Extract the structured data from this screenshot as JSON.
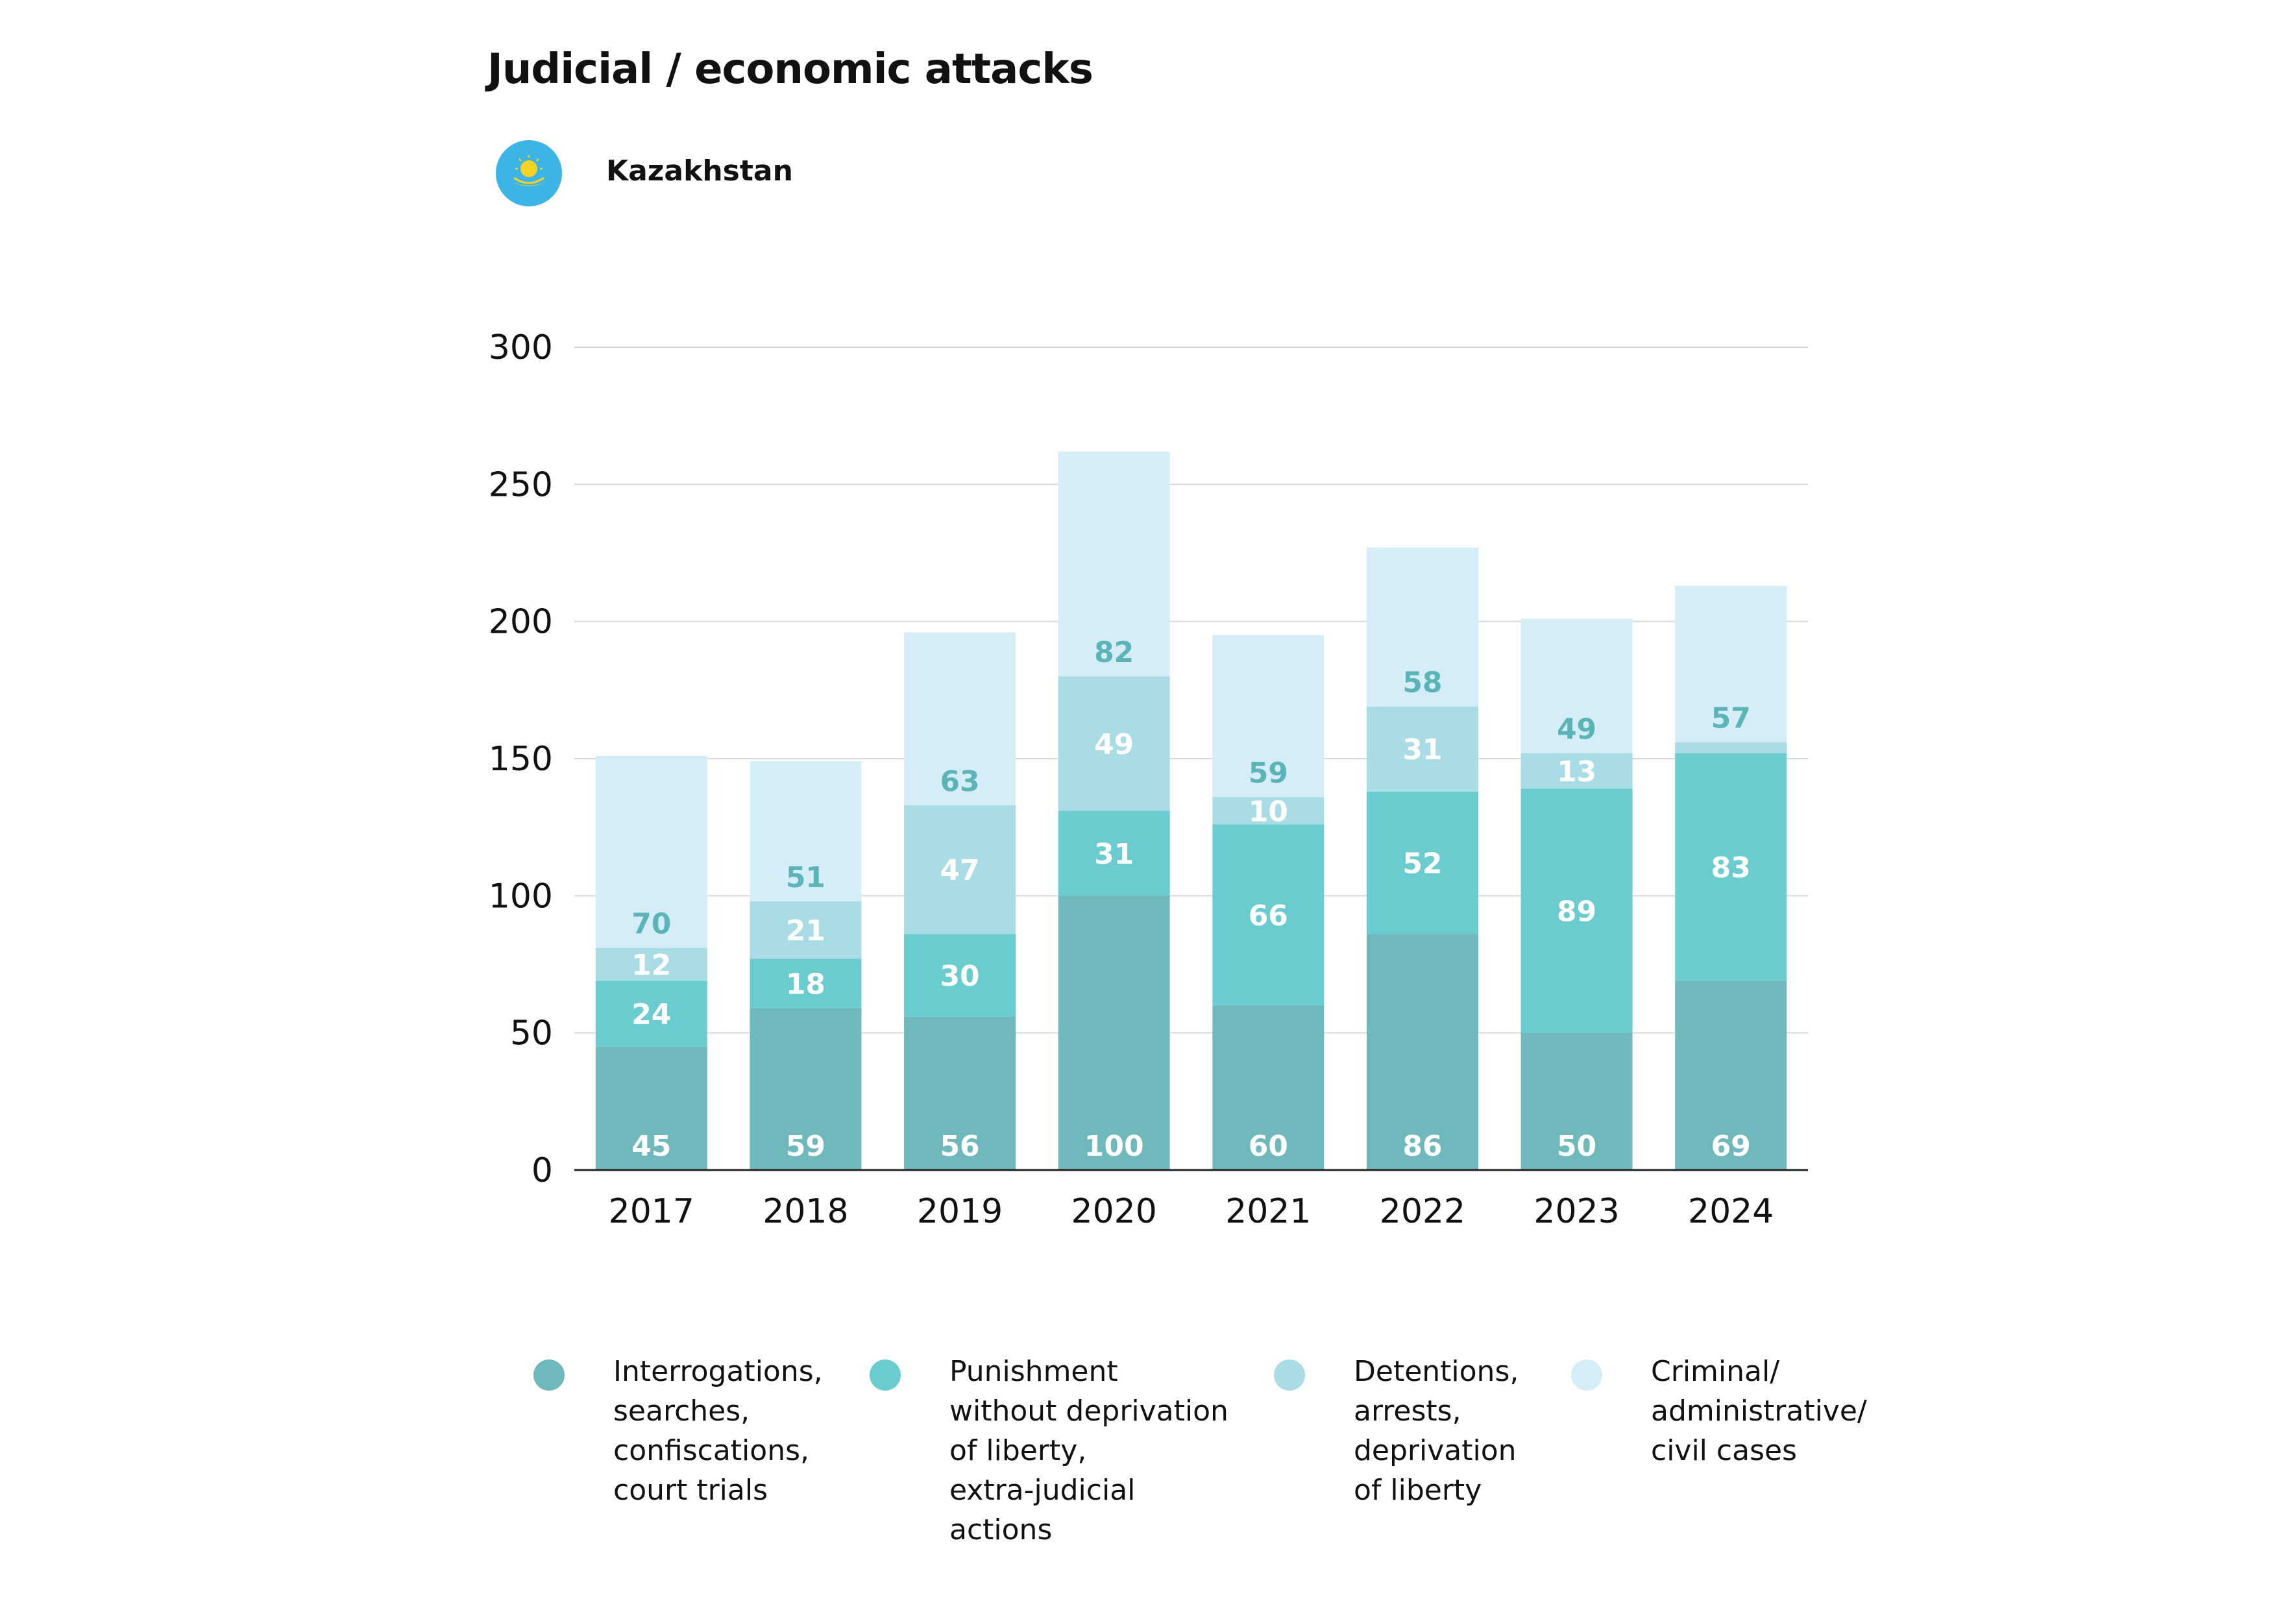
{
  "header": {
    "title": "Judicial / economic attacks",
    "country": "Kazakhstan"
  },
  "icons": {
    "flag": "kazakhstan-flag-icon"
  },
  "colors": {
    "interrogations": "#6fb9bc",
    "punishment": "#6accce",
    "detentions": "#a9dce5",
    "criminal": "#d5edf6",
    "flag_blue": "#3cb4e5",
    "flag_gold": "#f5d223",
    "label_dark": "#5bb5b8",
    "gridline": "#d9d9d9"
  },
  "chart_data": {
    "type": "bar",
    "stacked": true,
    "categories": [
      "2017",
      "2018",
      "2019",
      "2020",
      "2021",
      "2022",
      "2023",
      "2024"
    ],
    "series": [
      {
        "name": "Interrogations,\nsearches,\nconfiscations,\ncourt trials",
        "values": [
          45,
          59,
          56,
          100,
          60,
          86,
          50,
          69
        ]
      },
      {
        "name": "Punishment\nwithout deprivation\nof liberty,\nextra-judicial\nactions",
        "values": [
          24,
          18,
          30,
          31,
          66,
          52,
          89,
          83
        ]
      },
      {
        "name": "Detentions,\narrests,\ndeprivation\nof liberty",
        "values": [
          12,
          21,
          47,
          49,
          10,
          31,
          13,
          4
        ]
      },
      {
        "name": "Criminal/\nadministrative/\ncivil cases",
        "values": [
          70,
          51,
          63,
          82,
          59,
          58,
          49,
          57
        ]
      }
    ],
    "data_labels": [
      [
        "45",
        "59",
        "56",
        "100",
        "60",
        "86",
        "50",
        "69"
      ],
      [
        "24",
        "18",
        "30",
        "31",
        "66",
        "52",
        "89",
        "83"
      ],
      [
        "12",
        "21",
        "47",
        "49",
        "10",
        "31",
        "13",
        ""
      ],
      [
        "70",
        "51",
        "63",
        "82",
        "59",
        "58",
        "49",
        "57"
      ]
    ],
    "yticks": [
      "0",
      "50",
      "100",
      "150",
      "200",
      "250",
      "300"
    ],
    "ylim": [
      0,
      300
    ],
    "grid": true,
    "legend_position": "bottom",
    "title": "",
    "xlabel": "",
    "ylabel": ""
  }
}
